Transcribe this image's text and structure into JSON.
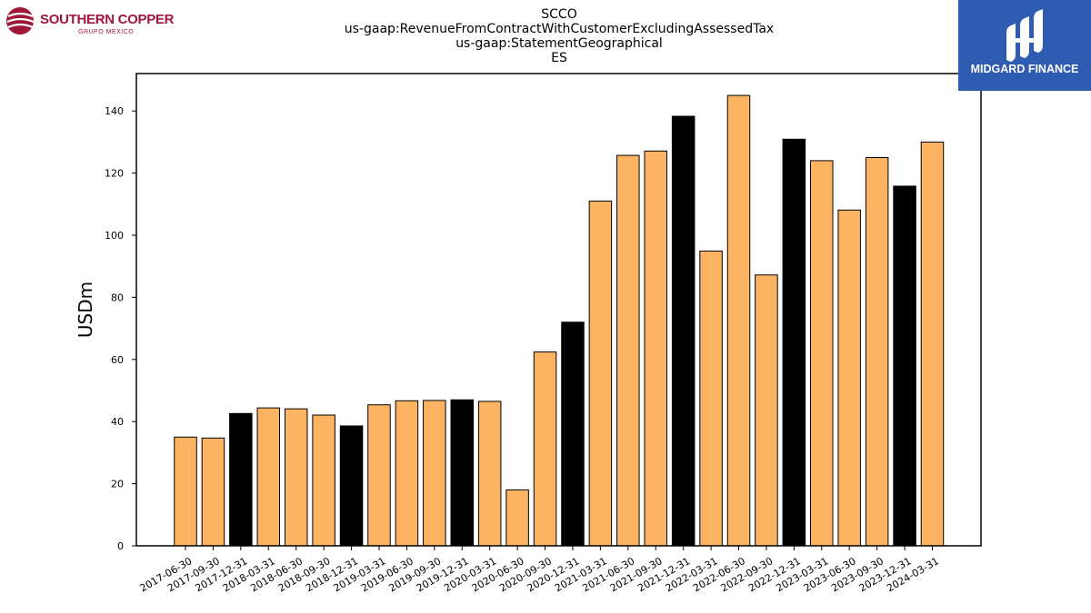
{
  "logos": {
    "left": {
      "name": "SOUTHERN COPPER",
      "subtitle": "GRUPO MEXICO"
    },
    "right": {
      "name": "MIDGARD FINANCE"
    }
  },
  "chart_data": {
    "type": "bar",
    "title_lines": [
      "SCCO",
      "us-gaap:RevenueFromContractWithCustomerExcludingAssessedTax",
      "us-gaap:StatementGeographical",
      "ES"
    ],
    "xlabel": "",
    "ylabel": "USDm",
    "ylim": [
      0,
      152
    ],
    "yticks": [
      0,
      20,
      40,
      60,
      80,
      100,
      120,
      140
    ],
    "grid": false,
    "colors": {
      "quarter": "#fdb462",
      "year_end": "#000000",
      "edge": "#000000"
    },
    "categories": [
      "2017-06-30",
      "2017-09-30",
      "2017-12-31",
      "2018-03-31",
      "2018-06-30",
      "2018-09-30",
      "2018-12-31",
      "2019-03-31",
      "2019-06-30",
      "2019-09-30",
      "2019-12-31",
      "2020-03-31",
      "2020-06-30",
      "2020-09-30",
      "2020-12-31",
      "2021-03-31",
      "2021-06-30",
      "2021-09-30",
      "2021-12-31",
      "2022-03-31",
      "2022-06-30",
      "2022-09-30",
      "2022-12-31",
      "2023-03-31",
      "2023-06-30",
      "2023-09-30",
      "2023-12-31",
      "2024-03-31"
    ],
    "values": [
      35,
      34.7,
      42.6,
      44.4,
      44.1,
      42.1,
      38.6,
      45.4,
      46.7,
      46.8,
      47.0,
      46.5,
      18.0,
      62.4,
      72.0,
      111.0,
      125.7,
      127.1,
      138.3,
      94.9,
      145.0,
      87.2,
      130.9,
      124.0,
      108.1,
      125.0,
      115.8,
      130.0
    ]
  }
}
